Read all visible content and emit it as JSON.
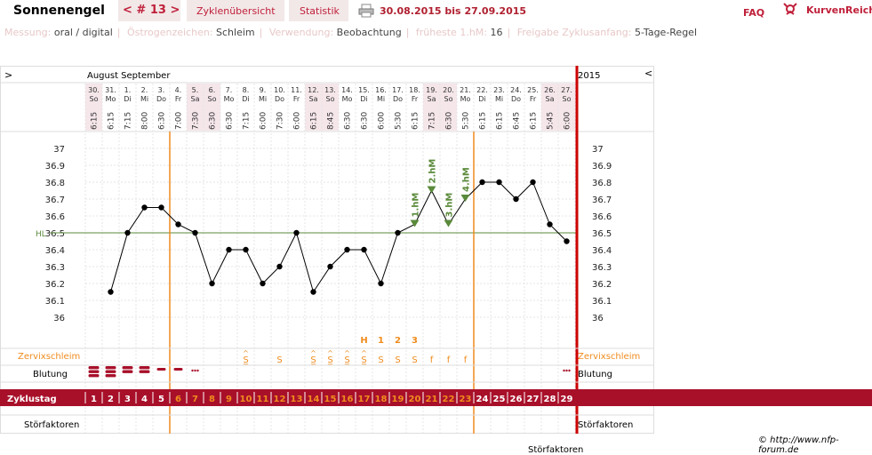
{
  "app_title": "Sonnenengel",
  "nav": {
    "cycle": "< # 13 >",
    "tabs": [
      "Zyklenübersicht",
      "Statistik"
    ],
    "date_range": "30.08.2015 bis 27.09.2015",
    "faq": "FAQ",
    "brand": "KurvenReich"
  },
  "info": {
    "items": [
      {
        "label": "Messung:",
        "value": "oral / digital"
      },
      {
        "label": "Östrogenzeichen:",
        "value": "Schleim"
      },
      {
        "label": "Verwendung:",
        "value": "Beobachtung"
      },
      {
        "label": "früheste 1.hM:",
        "value": "16"
      },
      {
        "label": "Freigabe Zyklusanfang:",
        "value": "5-Tage-Regel"
      }
    ]
  },
  "chart_header": {
    "left_marker": ">",
    "months": "August  September",
    "year": "2015",
    "right_marker": "<"
  },
  "days": [
    {
      "date": "30.",
      "wd": "So",
      "time": "6:15",
      "weekend": true
    },
    {
      "date": "31.",
      "wd": "Mo",
      "time": "6:15",
      "weekend": false
    },
    {
      "date": "1.",
      "wd": "Di",
      "time": "7:15",
      "weekend": false
    },
    {
      "date": "2.",
      "wd": "Mi",
      "time": "8:00",
      "weekend": false
    },
    {
      "date": "3.",
      "wd": "Do",
      "time": "6:30",
      "weekend": false
    },
    {
      "date": "4.",
      "wd": "Fr",
      "time": "7:00",
      "weekend": false
    },
    {
      "date": "5.",
      "wd": "Sa",
      "time": "7:30",
      "weekend": true
    },
    {
      "date": "6.",
      "wd": "So",
      "time": "6:30",
      "weekend": true
    },
    {
      "date": "7.",
      "wd": "Mo",
      "time": "6:30",
      "weekend": false
    },
    {
      "date": "8.",
      "wd": "Di",
      "time": "7:15",
      "weekend": false
    },
    {
      "date": "9.",
      "wd": "Mi",
      "time": "6:00",
      "weekend": false
    },
    {
      "date": "10.",
      "wd": "Do",
      "time": "7:30",
      "weekend": false
    },
    {
      "date": "11.",
      "wd": "Fr",
      "time": "6:00",
      "weekend": false
    },
    {
      "date": "12.",
      "wd": "Sa",
      "time": "6:15",
      "weekend": true
    },
    {
      "date": "13.",
      "wd": "So",
      "time": "8:45",
      "weekend": true
    },
    {
      "date": "14.",
      "wd": "Mo",
      "time": "6:30",
      "weekend": false
    },
    {
      "date": "15.",
      "wd": "Di",
      "time": "6:30",
      "weekend": false
    },
    {
      "date": "16.",
      "wd": "Mi",
      "time": "6:00",
      "weekend": false
    },
    {
      "date": "17.",
      "wd": "Do",
      "time": "5:30",
      "weekend": false
    },
    {
      "date": "18.",
      "wd": "Fr",
      "time": "6:15",
      "weekend": false
    },
    {
      "date": "19.",
      "wd": "Sa",
      "time": "7:15",
      "weekend": true
    },
    {
      "date": "20.",
      "wd": "So",
      "time": "6:30",
      "weekend": true
    },
    {
      "date": "21.",
      "wd": "Mo",
      "time": "5:30",
      "weekend": false
    },
    {
      "date": "22.",
      "wd": "Di",
      "time": "6:15",
      "weekend": false
    },
    {
      "date": "23.",
      "wd": "Mi",
      "time": "6:15",
      "weekend": false
    },
    {
      "date": "24.",
      "wd": "Do",
      "time": "6:45",
      "weekend": false
    },
    {
      "date": "25.",
      "wd": "Fr",
      "time": "6:15",
      "weekend": false
    },
    {
      "date": "26.",
      "wd": "Sa",
      "time": "5:45",
      "weekend": true
    },
    {
      "date": "27.",
      "wd": "So",
      "time": "6:00",
      "weekend": true
    }
  ],
  "chart_data": {
    "type": "line",
    "x": [
      1,
      2,
      3,
      4,
      5,
      6,
      7,
      8,
      9,
      10,
      11,
      12,
      13,
      14,
      15,
      16,
      17,
      18,
      19,
      20,
      21,
      22,
      23,
      24,
      25,
      26,
      27,
      28,
      29
    ],
    "series": [
      {
        "values": [
          null,
          36.15,
          36.5,
          36.65,
          36.65,
          36.55,
          36.5,
          36.2,
          36.4,
          36.4,
          36.2,
          36.3,
          36.5,
          36.15,
          36.3,
          36.4,
          36.4,
          36.2,
          36.5,
          36.55,
          36.75,
          36.55,
          36.7,
          36.8,
          36.8,
          36.7,
          36.8,
          36.55,
          36.45
        ]
      }
    ],
    "y_ticks": [
      "37",
      "36.9",
      "36.8",
      "36.7",
      "36.6",
      "36.5",
      "36.4",
      "36.3",
      "36.2",
      "36.1",
      "36"
    ],
    "ylim": [
      36.0,
      37.0
    ],
    "coverline": {
      "label": "HL",
      "value": 36.5
    },
    "hm_markers": [
      {
        "label": "1.hM",
        "day": 20
      },
      {
        "label": "2.hM",
        "day": 21
      },
      {
        "label": "3.hM",
        "day": 22
      },
      {
        "label": "4.hM",
        "day": 23
      }
    ],
    "orange_lines_days": [
      5,
      23
    ],
    "grid": true
  },
  "mucus_peak": [
    {
      "day": 17,
      "text": "H"
    },
    {
      "day": 18,
      "text": "1"
    },
    {
      "day": 19,
      "text": "2"
    },
    {
      "day": 20,
      "text": "3"
    }
  ],
  "rows": {
    "cervix_label": "Zervixschleim",
    "bleeding_label": "Blutung",
    "cycle_day_label": "Zyklustag",
    "disturb_label": "Störfaktoren"
  },
  "cervix": [
    {
      "day": 10,
      "text": "S̲",
      "mark": "^"
    },
    {
      "day": 12,
      "text": "S"
    },
    {
      "day": 14,
      "text": "S̲",
      "mark": "^"
    },
    {
      "day": 15,
      "text": "S̲",
      "mark": "^"
    },
    {
      "day": 16,
      "text": "S̲",
      "mark": "^"
    },
    {
      "day": 17,
      "text": "S̲",
      "mark": "^"
    },
    {
      "day": 18,
      "text": "S"
    },
    {
      "day": 19,
      "text": "S"
    },
    {
      "day": 20,
      "text": "S"
    },
    {
      "day": 21,
      "text": "f"
    },
    {
      "day": 22,
      "text": "f"
    },
    {
      "day": 23,
      "text": "f"
    }
  ],
  "bleeding": [
    {
      "day": 1,
      "level": 3
    },
    {
      "day": 2,
      "level": 3
    },
    {
      "day": 3,
      "level": 2
    },
    {
      "day": 4,
      "level": 2
    },
    {
      "day": 5,
      "level": 1
    },
    {
      "day": 6,
      "level": 1
    },
    {
      "day": 7,
      "level": 0
    },
    {
      "day": 29,
      "level": 0
    }
  ],
  "cycle_days": [
    "1",
    "2",
    "3",
    "4",
    "5",
    "6",
    "7",
    "8",
    "9",
    "10",
    "11",
    "12",
    "13",
    "14",
    "15",
    "16",
    "17",
    "18",
    "19",
    "20",
    "21",
    "22",
    "23",
    "24",
    "25",
    "26",
    "27",
    "28",
    "29"
  ],
  "copyright": "© http://www.nfp-forum.de",
  "stoer_bottom": "Störfaktoren",
  "colors": {
    "accent": "#c0203a",
    "orange": "#f08c1e",
    "cycle_bar": "#a8102a",
    "green": "#5a8a3a",
    "weekend": "#f5e6ea",
    "red_line": "#cc0000"
  }
}
